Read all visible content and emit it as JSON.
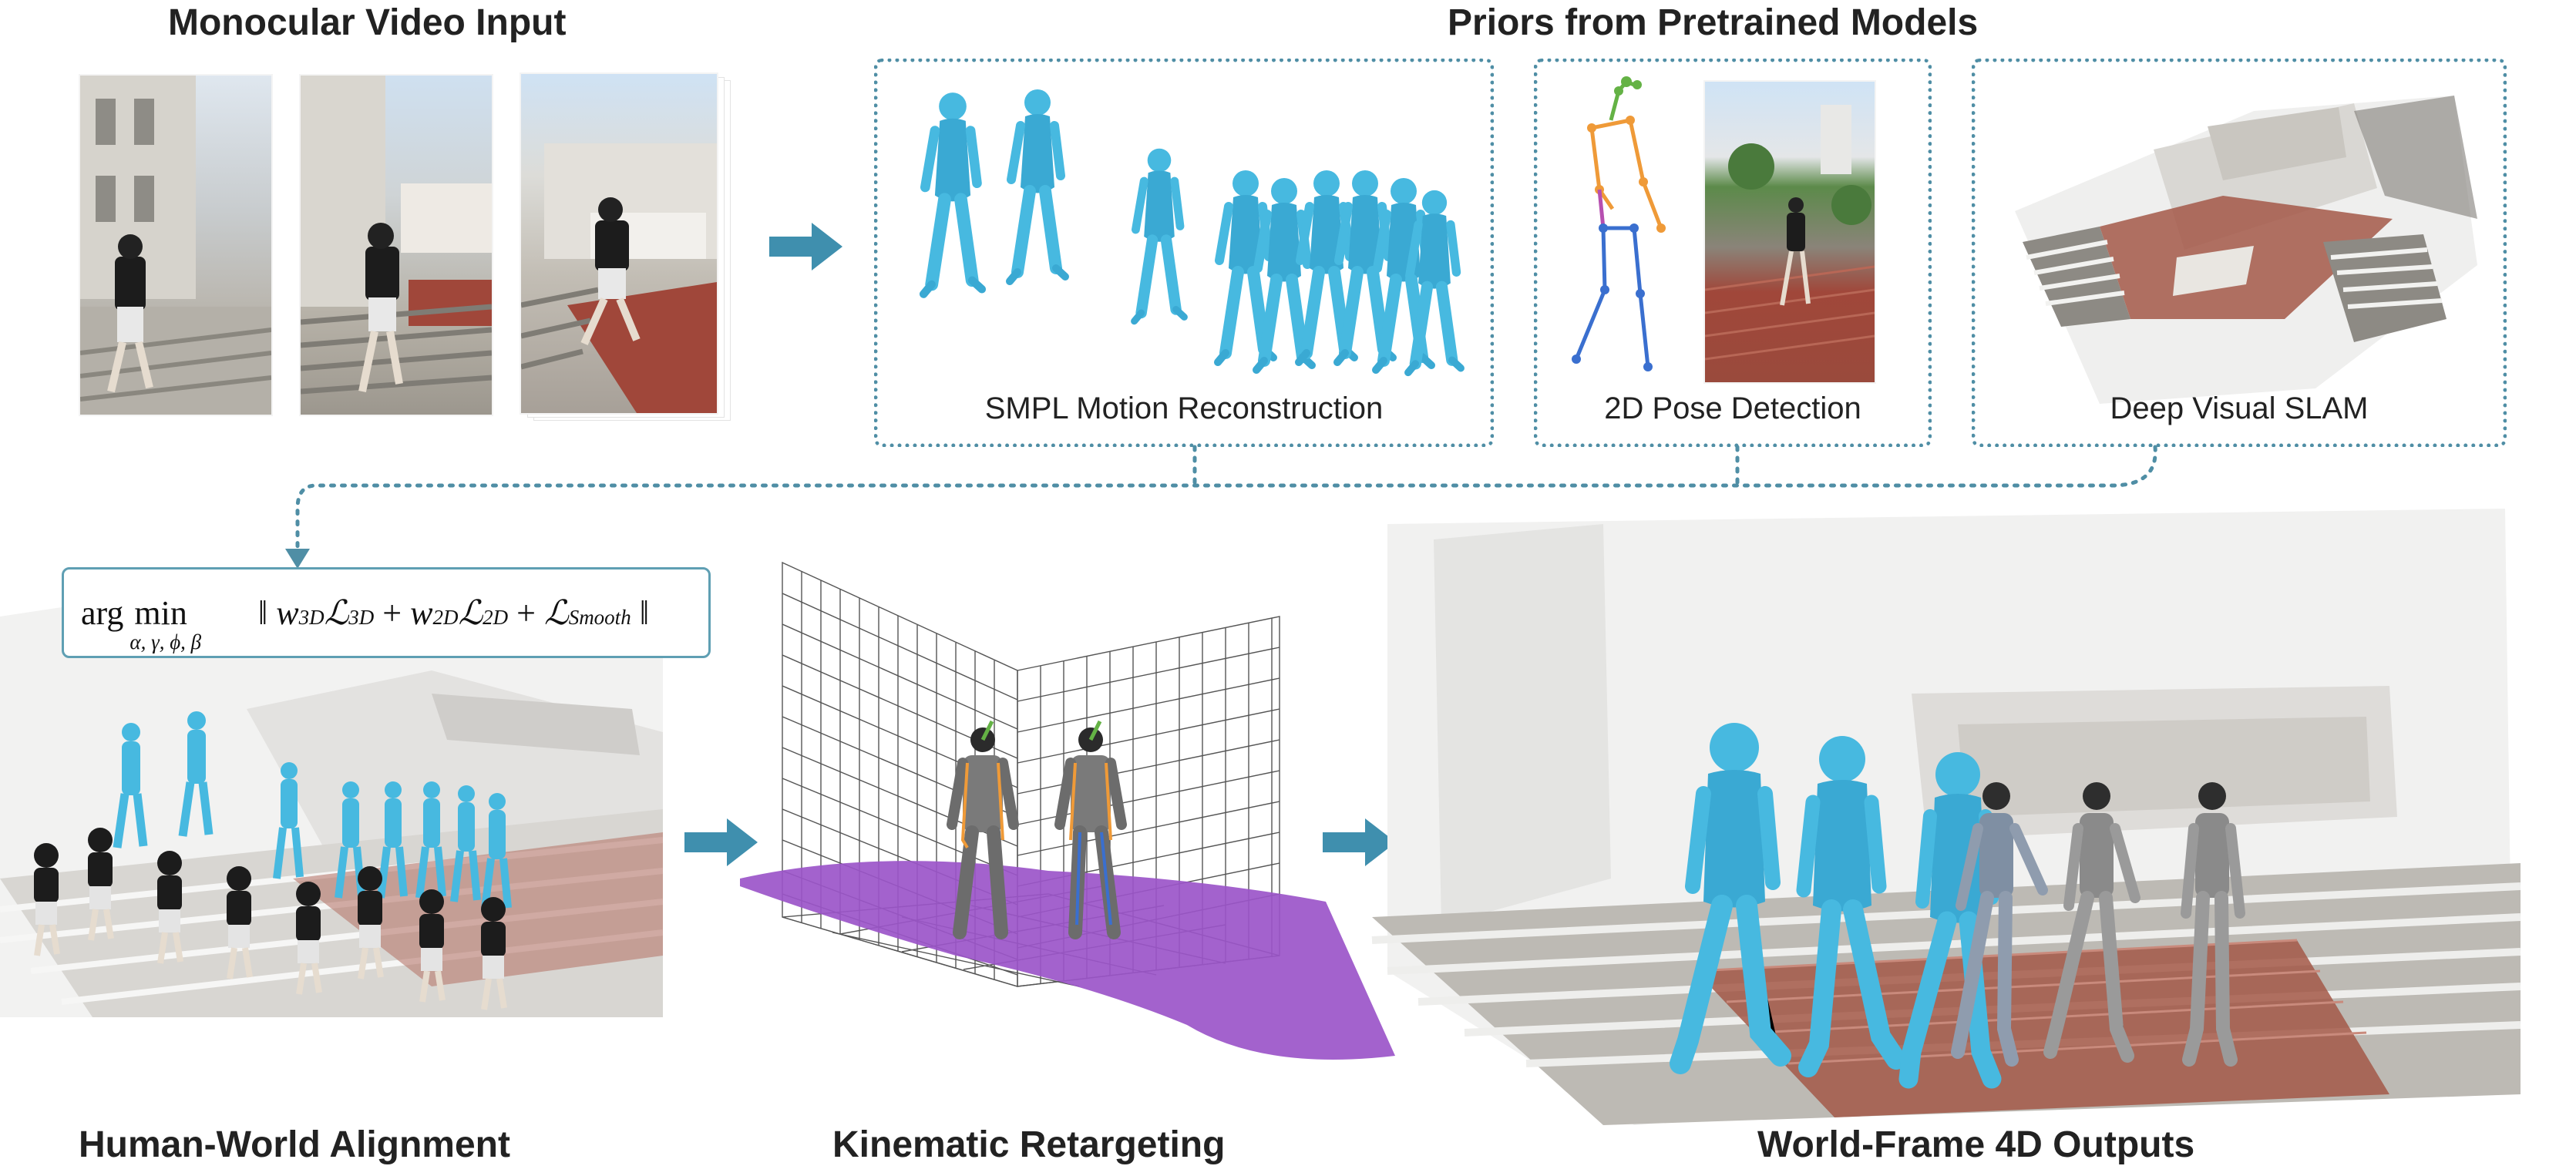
{
  "headings": {
    "monocular": "Monocular Video Input",
    "priors": "Priors from Pretrained Models",
    "alignment": "Human-World Alignment",
    "retargeting": "Kinematic Retargeting",
    "outputs": "World-Frame 4D Outputs"
  },
  "captions": {
    "smpl": "SMPL Motion Reconstruction",
    "pose2d": "2D Pose Detection",
    "slam": "Deep Visual SLAM"
  },
  "formula": {
    "arg": "arg",
    "min": "min",
    "limits": "α, γ, ϕ, β"
  },
  "colors": {
    "arrow": "#3f8fae",
    "human_mesh": "#47b9e0",
    "dotted_border": "#4f8ea5",
    "terrain": "#9b55c9",
    "brick": "#a0473a"
  }
}
